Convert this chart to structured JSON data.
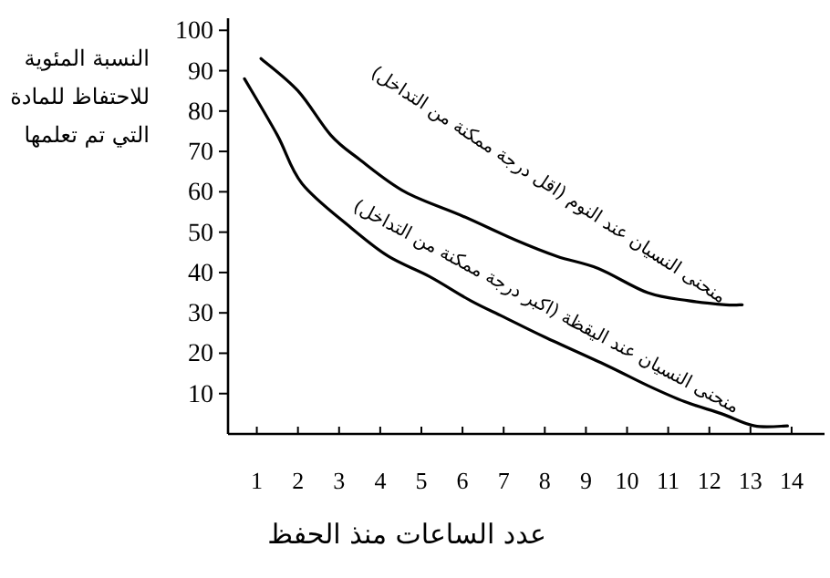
{
  "chart_data": {
    "type": "line",
    "xlabel": "عدد الساعات منذ الحفظ",
    "ylabel": "النسبة المئوية للاحتفاظ للمادة التي تم تعلمها",
    "xlim": [
      0.3,
      14.8
    ],
    "ylim": [
      0,
      103
    ],
    "xticks": [
      1,
      2,
      3,
      4,
      5,
      6,
      7,
      8,
      9,
      10,
      11,
      12,
      13,
      14
    ],
    "yticks": [
      10,
      20,
      30,
      40,
      50,
      60,
      70,
      80,
      90,
      100
    ],
    "grid": false,
    "legend": false,
    "marker": "none",
    "line_style": "solid",
    "series": [
      {
        "name": "منحنى النسيان عند النوم (اقل درجة ممكنة من التداخل)",
        "color": "#000000",
        "x": [
          1.1,
          2,
          2.8,
          3.5,
          4.6,
          6,
          7.3,
          8.3,
          9.3,
          10.5,
          11.5,
          12.4,
          12.8
        ],
        "values": [
          93,
          85,
          74,
          68,
          60,
          54,
          48,
          44,
          41,
          35,
          33,
          32,
          32
        ]
      },
      {
        "name": "منحنى النسيان عند اليقظة (اكبر درجة ممكنة من التداخل)",
        "color": "#000000",
        "x": [
          0.7,
          1.5,
          2.1,
          3.3,
          4.2,
          5.2,
          6.2,
          7,
          8,
          9.5,
          10.5,
          11.4,
          12.3,
          13.1,
          13.9
        ],
        "values": [
          88,
          74,
          62,
          51,
          44,
          39,
          33,
          29,
          24,
          17,
          12,
          8,
          5,
          2,
          2
        ]
      }
    ]
  }
}
